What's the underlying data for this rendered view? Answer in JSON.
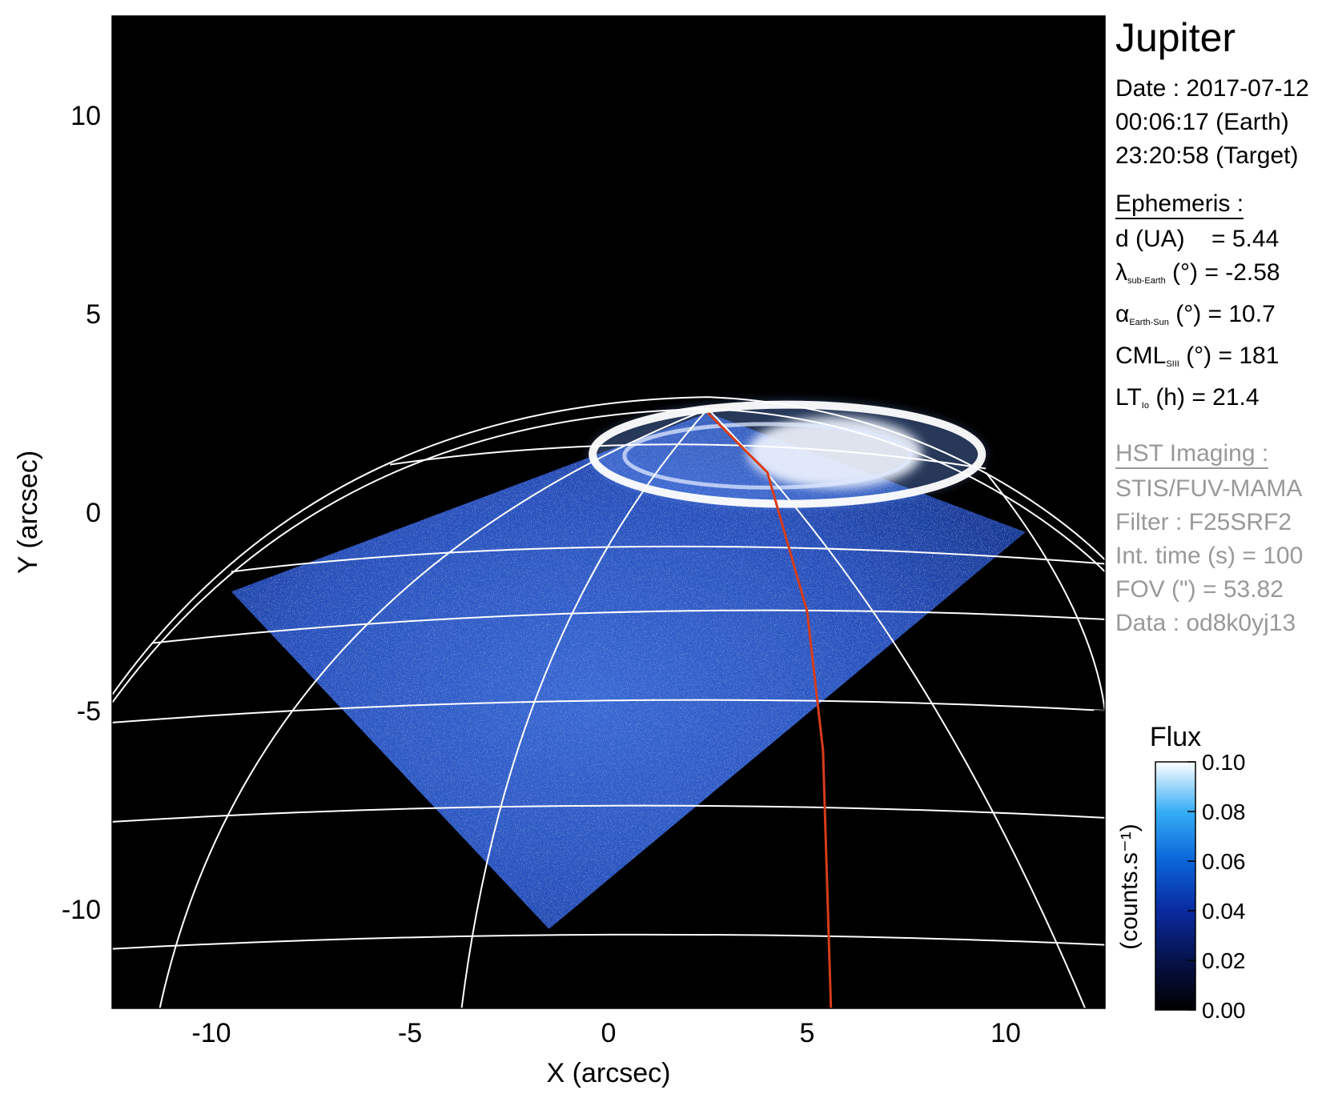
{
  "title": "Jupiter",
  "date_block": {
    "date": "Date : 2017-07-12",
    "earth_time": "00:06:17 (Earth)",
    "target_time": "23:20:58 (Target)"
  },
  "ephemeris": {
    "header": "Ephemeris :",
    "d": "d (UA)    = 5.44",
    "lambda": {
      "symbol": "λ",
      "sub": "sub-Earth",
      "rest": " (°) = -2.58"
    },
    "alpha": {
      "symbol": "α",
      "sub": "Earth-Sun",
      "rest": " (°) = 10.7"
    },
    "cml": {
      "symbol": "CML",
      "sub": "SIII",
      "rest": " (°) = 181"
    },
    "lt": {
      "symbol": "LT",
      "sub": "Io",
      "rest": " (h) = 21.4"
    }
  },
  "hst_imaging": {
    "header": "HST Imaging :",
    "instrument": "STIS/FUV-MAMA",
    "filter": "Filter : F25SRF2",
    "int_time": "Int. time (s) = 100",
    "fov": "FOV (\") = 53.82",
    "data": "Data : od8k0yj13"
  },
  "chart_data": {
    "type": "heatmap",
    "xlabel": "X (arcsec)",
    "ylabel": "Y (arcsec)",
    "xlim": [
      -12.5,
      12.5
    ],
    "ylim": [
      -12.5,
      12.5
    ],
    "x_ticks": [
      -10,
      -5,
      0,
      5,
      10
    ],
    "y_ticks": [
      -10,
      -5,
      0,
      5,
      10
    ],
    "x_tick_labels": [
      "-10",
      "-5",
      "0",
      "5",
      "10"
    ],
    "y_tick_labels": [
      "-10",
      "-5",
      "0",
      "5",
      "10"
    ],
    "image_footprint_corners": [
      [
        -9.5,
        -2
      ],
      [
        -1.5,
        -10.5
      ],
      [
        10.5,
        -0.5
      ],
      [
        2.5,
        2.5
      ]
    ],
    "auroral_oval_center": [
      4.5,
      1.5
    ],
    "red_meridian": [
      [
        2.5,
        2.5
      ],
      [
        4.0,
        1.0
      ],
      [
        5.0,
        -2.5
      ],
      [
        5.4,
        -6.0
      ],
      [
        5.6,
        -12.5
      ]
    ],
    "colorbar": {
      "title": "Flux",
      "label": "(counts.s⁻¹)",
      "min": 0.0,
      "max": 0.1,
      "ticks": [
        0.0,
        0.02,
        0.04,
        0.06,
        0.08,
        0.1
      ],
      "tick_labels": [
        "0.00",
        "0.02",
        "0.04",
        "0.06",
        "0.08",
        "0.10"
      ]
    }
  },
  "colors": {
    "background": "#000000",
    "grid": "#ffffff",
    "meridian": "#d73c18",
    "emission_dark": "#1a3a9e",
    "emission_bright": "#ffffff",
    "label_grey": "#999999"
  }
}
